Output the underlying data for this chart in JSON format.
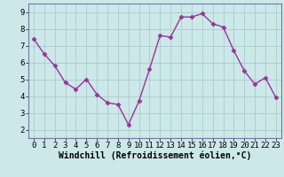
{
  "x": [
    0,
    1,
    2,
    3,
    4,
    5,
    6,
    7,
    8,
    9,
    10,
    11,
    12,
    13,
    14,
    15,
    16,
    17,
    18,
    19,
    20,
    21,
    22,
    23
  ],
  "y": [
    7.4,
    6.5,
    5.8,
    4.8,
    4.4,
    5.0,
    4.1,
    3.6,
    3.5,
    2.3,
    3.7,
    5.6,
    7.6,
    7.5,
    8.7,
    8.7,
    8.9,
    8.3,
    8.1,
    6.7,
    5.5,
    4.7,
    5.1,
    3.9
  ],
  "xlabel": "Windchill (Refroidissement éolien,°C)",
  "ylim": [
    1.5,
    9.5
  ],
  "xlim": [
    -0.5,
    23.5
  ],
  "yticks": [
    2,
    3,
    4,
    5,
    6,
    7,
    8,
    9
  ],
  "xticks": [
    0,
    1,
    2,
    3,
    4,
    5,
    6,
    7,
    8,
    9,
    10,
    11,
    12,
    13,
    14,
    15,
    16,
    17,
    18,
    19,
    20,
    21,
    22,
    23
  ],
  "line_color": "#993399",
  "marker_color": "#993399",
  "bg_color": "#cce8e8",
  "grid_color": "#aacccc",
  "border_color": "#7777aa",
  "xlabel_fontsize": 7,
  "tick_fontsize": 6.5,
  "linewidth": 1.0,
  "markersize": 2.5
}
